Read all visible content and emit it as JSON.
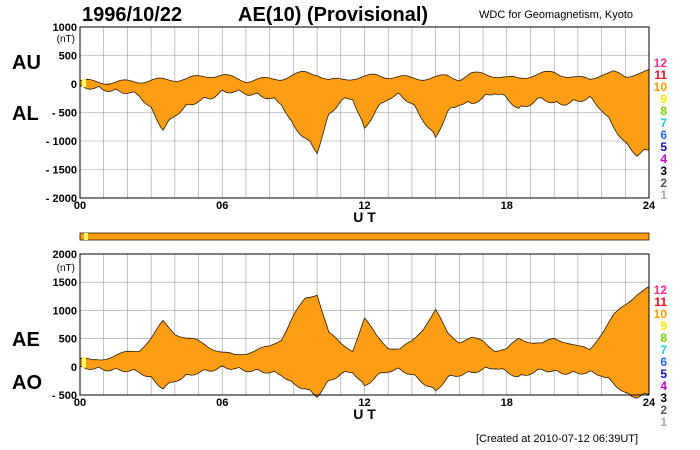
{
  "header": {
    "date": "1996/10/22",
    "title": "AE(10) (Provisional)",
    "source": "WDC for Geomagnetism, Kyoto"
  },
  "footer": {
    "created": "[Created at 2010-07-12 06:39UT]"
  },
  "colors": {
    "fill": "#ff9e14",
    "outline": "#2a1a00",
    "grid": "#9a9a9a",
    "early_marker": "#ffff66"
  },
  "legend_scale": [
    {
      "label": "12",
      "color": "#ff2a8a"
    },
    {
      "label": "11",
      "color": "#e0101a"
    },
    {
      "label": "10",
      "color": "#ff9c00"
    },
    {
      "label": "9",
      "color": "#ffe600"
    },
    {
      "label": "8",
      "color": "#7fcc00"
    },
    {
      "label": "7",
      "color": "#22ccdd"
    },
    {
      "label": "6",
      "color": "#2266ff"
    },
    {
      "label": "5",
      "color": "#1010b0"
    },
    {
      "label": "4",
      "color": "#cc00cc"
    },
    {
      "label": "3",
      "color": "#000000"
    },
    {
      "label": "2",
      "color": "#555555"
    },
    {
      "label": "1",
      "color": "#aaaaaa"
    }
  ],
  "chart_data": [
    {
      "type": "area",
      "id": "au-al",
      "upper_label": "AU",
      "lower_label": "AL",
      "unit": "(nT)",
      "xlabel": "U T",
      "x_ticks": [
        "00",
        "06",
        "12",
        "18",
        "24"
      ],
      "x_range": [
        0,
        24
      ],
      "y_ticks": [
        "1000",
        "500",
        "0",
        "- 500",
        "- 1000",
        "- 1500",
        "- 2000"
      ],
      "y_tick_values": [
        1000,
        500,
        0,
        -500,
        -1000,
        -1500,
        -2000
      ],
      "ylim": [
        -2000,
        1000
      ],
      "grid": true,
      "series": [
        {
          "key": "AU",
          "x": [
            0,
            0.5,
            1,
            1.5,
            2,
            2.5,
            3,
            3.5,
            4,
            4.5,
            5,
            5.5,
            6,
            6.5,
            7,
            7.5,
            8,
            8.5,
            9,
            9.5,
            10,
            10.5,
            11,
            11.5,
            12,
            12.5,
            13,
            13.5,
            14,
            14.5,
            15,
            15.5,
            16,
            16.5,
            17,
            17.5,
            18,
            18.5,
            19,
            19.5,
            20,
            20.5,
            21,
            21.5,
            22,
            22.5,
            23,
            23.5,
            24
          ],
          "values": [
            60,
            40,
            30,
            30,
            40,
            50,
            60,
            70,
            80,
            90,
            120,
            150,
            150,
            100,
            60,
            80,
            80,
            100,
            150,
            200,
            180,
            60,
            70,
            110,
            120,
            150,
            130,
            120,
            100,
            100,
            110,
            140,
            90,
            170,
            180,
            150,
            100,
            100,
            150,
            180,
            200,
            150,
            100,
            80,
            180,
            200,
            120,
            200,
            220
          ]
        },
        {
          "key": "AL",
          "x": [
            0,
            0.5,
            1,
            1.5,
            2,
            2.5,
            3,
            3.5,
            4,
            4.5,
            5,
            5.5,
            6,
            6.5,
            7,
            7.5,
            8,
            8.5,
            9,
            9.5,
            10,
            10.5,
            11,
            11.5,
            12,
            12.5,
            13,
            13.5,
            14,
            14.5,
            15,
            15.5,
            16,
            16.5,
            17,
            17.5,
            18,
            18.5,
            19,
            19.5,
            20,
            20.5,
            21,
            21.5,
            22,
            22.5,
            23,
            23.5,
            24
          ],
          "values": [
            -20,
            -20,
            -50,
            -80,
            -100,
            -150,
            -400,
            -750,
            -500,
            -350,
            -250,
            -200,
            -100,
            -80,
            -120,
            -150,
            -200,
            -300,
            -700,
            -900,
            -1150,
            -500,
            -250,
            -200,
            -750,
            -400,
            -200,
            -150,
            -300,
            -600,
            -900,
            -450,
            -300,
            -300,
            -200,
            -100,
            -200,
            -400,
            -300,
            -200,
            -300,
            -300,
            -250,
            -200,
            -400,
            -700,
            -1000,
            -1200,
            -1100
          ]
        }
      ]
    },
    {
      "type": "area",
      "id": "ae-ao",
      "upper_label": "AE",
      "lower_label": "AO",
      "unit": "(nT)",
      "xlabel": "U T",
      "x_ticks": [
        "00",
        "06",
        "12",
        "18",
        "24"
      ],
      "x_range": [
        0,
        24
      ],
      "y_ticks": [
        "2000",
        "1500",
        "1000",
        "500",
        "0",
        "- 500"
      ],
      "y_tick_values": [
        2000,
        1500,
        1000,
        500,
        0,
        -500
      ],
      "ylim": [
        -500,
        2000
      ],
      "grid": true,
      "series": [
        {
          "key": "AE",
          "x": [
            0,
            0.5,
            1,
            1.5,
            2,
            2.5,
            3,
            3.5,
            4,
            4.5,
            5,
            5.5,
            6,
            6.5,
            7,
            7.5,
            8,
            8.5,
            9,
            9.5,
            10,
            10.5,
            11,
            11.5,
            12,
            12.5,
            13,
            13.5,
            14,
            14.5,
            15,
            15.5,
            16,
            16.5,
            17,
            17.5,
            18,
            18.5,
            19,
            19.5,
            20,
            20.5,
            21,
            21.5,
            22,
            22.5,
            23,
            23.5,
            24
          ],
          "values": [
            150,
            100,
            150,
            200,
            250,
            300,
            500,
            800,
            600,
            500,
            450,
            350,
            250,
            200,
            250,
            300,
            350,
            500,
            900,
            1200,
            1300,
            600,
            400,
            300,
            850,
            550,
            350,
            300,
            450,
            700,
            1000,
            600,
            450,
            500,
            450,
            300,
            300,
            500,
            450,
            400,
            500,
            450,
            350,
            300,
            600,
            900,
            1100,
            1300,
            1400
          ]
        },
        {
          "key": "AO",
          "x": [
            0,
            0.5,
            1,
            1.5,
            2,
            2.5,
            3,
            3.5,
            4,
            4.5,
            5,
            5.5,
            6,
            6.5,
            7,
            7.5,
            8,
            8.5,
            9,
            9.5,
            10,
            10.5,
            11,
            11.5,
            12,
            12.5,
            13,
            13.5,
            14,
            14.5,
            15,
            15.5,
            16,
            16.5,
            17,
            17.5,
            18,
            18.5,
            19,
            19.5,
            20,
            20.5,
            21,
            21.5,
            22,
            22.5,
            23,
            23.5,
            24
          ],
          "values": [
            20,
            10,
            -10,
            -20,
            -30,
            -50,
            -170,
            -340,
            -210,
            -130,
            -60,
            -25,
            25,
            10,
            -30,
            -35,
            -60,
            -100,
            -275,
            -350,
            -485,
            -220,
            -90,
            -45,
            -315,
            -125,
            -35,
            -15,
            -100,
            -250,
            -395,
            -155,
            -105,
            -65,
            -10,
            25,
            -50,
            -150,
            -75,
            -10,
            -50,
            -75,
            -75,
            -60,
            -110,
            -250,
            -440,
            -500,
            -440
          ]
        }
      ]
    }
  ]
}
